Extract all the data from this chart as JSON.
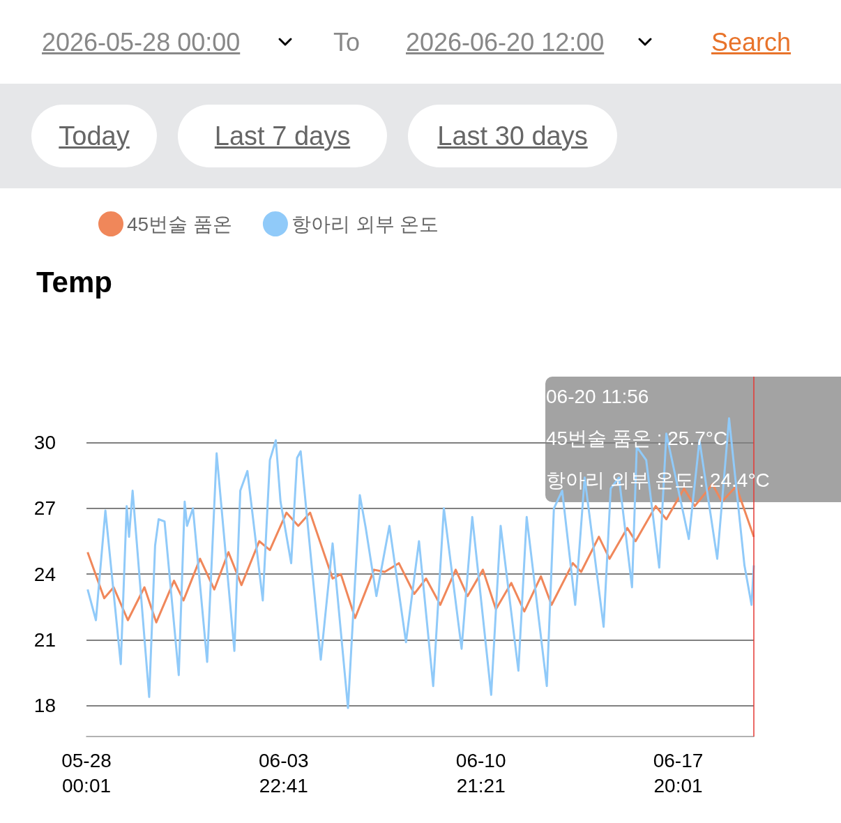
{
  "chart_data": [
    {
      "type": "other",
      "annotations": [
        "2026-05-28 00:00",
        "To",
        "2026-06-20 12:00",
        "Search",
        "Today",
        "Last 7 days",
        "Last 30 days"
      ]
    },
    {
      "type": "line",
      "title": "Temp",
      "legend": "top left",
      "grid": "y",
      "marker": "none",
      "line_style": "solid",
      "xlim": [
        "2026-05-28T00:01",
        "2026-06-20T11:56"
      ],
      "xticks": [
        {
          "value": "2026-05-28T00:01",
          "label": "05-28\n00:01"
        },
        {
          "value": "2026-06-03T22:41",
          "label": "06-03\n22:41"
        },
        {
          "value": "2026-06-10T21:21",
          "label": "06-10\n21:21"
        },
        {
          "value": "2026-06-17T20:01",
          "label": "06-17\n20:01"
        }
      ],
      "ylim": [
        16.6,
        33
      ],
      "yticks": [
        18,
        21,
        24,
        27,
        30
      ],
      "ref_lines": [
        {
          "axis": "x",
          "value": "2026-06-20T11:56",
          "color": "#e53935"
        }
      ],
      "annotations": [
        "06-20 11:56",
        "45번술 품온 : 25.7°C",
        "항아리 외부 온도 : 24.4°C"
      ],
      "series": [
        {
          "name": "45번술 품온",
          "color": "#f0875a",
          "x": [
            "2026-05-28T01:00",
            "2026-05-28T15:00",
            "2026-05-28T23:00",
            "2026-05-29T11:00",
            "2026-05-30T01:00",
            "2026-05-30T11:00",
            "2026-05-31T02:00",
            "2026-05-31T10:00",
            "2026-06-01T00:00",
            "2026-06-01T12:00",
            "2026-06-02T00:00",
            "2026-06-02T11:00",
            "2026-06-03T02:00",
            "2026-06-03T11:00",
            "2026-06-04T01:00",
            "2026-06-04T11:00",
            "2026-06-04T21:00",
            "2026-06-05T16:00",
            "2026-06-05T23:00",
            "2026-06-06T11:00",
            "2026-06-07T03:00",
            "2026-06-07T12:00",
            "2026-06-08T00:00",
            "2026-06-08T13:00",
            "2026-06-08T23:00",
            "2026-06-09T11:00",
            "2026-06-10T00:00",
            "2026-06-10T10:00",
            "2026-06-10T23:00",
            "2026-06-11T10:00",
            "2026-06-11T23:00",
            "2026-06-12T10:00",
            "2026-06-13T00:00",
            "2026-06-13T09:00",
            "2026-06-14T03:00",
            "2026-06-14T10:00",
            "2026-06-15T01:00",
            "2026-06-15T10:00",
            "2026-06-16T01:00",
            "2026-06-16T08:00",
            "2026-06-17T01:00",
            "2026-06-17T10:00",
            "2026-06-18T01:00",
            "2026-06-18T10:00",
            "2026-06-19T01:00",
            "2026-06-19T09:00",
            "2026-06-19T21:00",
            "2026-06-20T11:56"
          ],
          "values": [
            25.0,
            22.9,
            23.4,
            21.9,
            23.4,
            21.8,
            23.7,
            22.8,
            24.7,
            23.3,
            25.0,
            23.5,
            25.5,
            25.1,
            26.8,
            26.2,
            26.8,
            23.8,
            24.0,
            22.0,
            24.2,
            24.1,
            24.5,
            23.1,
            23.8,
            22.6,
            24.2,
            23.0,
            24.2,
            22.4,
            23.6,
            22.3,
            23.9,
            22.6,
            24.5,
            24.1,
            25.7,
            24.7,
            26.1,
            25.5,
            27.1,
            26.5,
            27.9,
            27.1,
            28.1,
            27.3,
            28.0,
            25.7
          ]
        },
        {
          "name": "항아리 외부 온도",
          "color": "#90caf9",
          "x": [
            "2026-05-28T01:00",
            "2026-05-28T08:00",
            "2026-05-28T16:00",
            "2026-05-29T05:00",
            "2026-05-29T10:00",
            "2026-05-29T12:00",
            "2026-05-29T15:00",
            "2026-05-30T05:00",
            "2026-05-30T10:00",
            "2026-05-30T13:00",
            "2026-05-30T18:00",
            "2026-05-31T06:00",
            "2026-05-31T11:00",
            "2026-05-31T13:00",
            "2026-05-31T18:00",
            "2026-06-01T06:00",
            "2026-06-01T14:00",
            "2026-06-02T05:00",
            "2026-06-02T10:00",
            "2026-06-02T16:00",
            "2026-06-03T05:00",
            "2026-06-03T11:00",
            "2026-06-03T16:00",
            "2026-06-03T20:00",
            "2026-06-04T05:00",
            "2026-06-04T10:00",
            "2026-06-04T13:00",
            "2026-06-05T06:00",
            "2026-06-05T16:00",
            "2026-06-06T05:00",
            "2026-06-06T15:00",
            "2026-06-06T20:00",
            "2026-06-07T05:00",
            "2026-06-07T16:00",
            "2026-06-08T06:00",
            "2026-06-08T17:00",
            "2026-06-09T05:00",
            "2026-06-09T14:00",
            "2026-06-10T05:00",
            "2026-06-10T14:00",
            "2026-06-11T06:00",
            "2026-06-11T14:00",
            "2026-06-12T05:00",
            "2026-06-12T12:00",
            "2026-06-13T05:00",
            "2026-06-13T11:00",
            "2026-06-13T18:00",
            "2026-06-14T05:00",
            "2026-06-14T13:00",
            "2026-06-15T05:00",
            "2026-06-15T11:00",
            "2026-06-15T18:00",
            "2026-06-16T05:00",
            "2026-06-16T09:00",
            "2026-06-16T17:00",
            "2026-06-17T04:00",
            "2026-06-17T10:00",
            "2026-06-18T05:00",
            "2026-06-18T14:00",
            "2026-06-19T05:00",
            "2026-06-19T15:00",
            "2026-06-20T04:00",
            "2026-06-20T10:00",
            "2026-06-20T11:56"
          ],
          "values": [
            23.3,
            21.9,
            26.9,
            19.9,
            27.1,
            25.7,
            27.8,
            18.4,
            25.3,
            26.5,
            26.4,
            19.4,
            27.3,
            26.2,
            27.0,
            20.0,
            29.5,
            20.5,
            27.8,
            28.7,
            22.8,
            29.2,
            30.1,
            27.3,
            24.5,
            29.3,
            29.6,
            20.1,
            25.4,
            17.9,
            27.6,
            26.1,
            23.0,
            26.2,
            20.9,
            25.5,
            18.9,
            27.0,
            20.6,
            26.6,
            18.5,
            26.2,
            19.6,
            26.6,
            18.9,
            27.0,
            27.8,
            22.6,
            28.4,
            21.6,
            27.9,
            28.4,
            23.4,
            29.8,
            29.2,
            24.3,
            30.4,
            25.6,
            30.1,
            24.7,
            31.1,
            24.4,
            22.6,
            24.4
          ]
        }
      ]
    }
  ]
}
